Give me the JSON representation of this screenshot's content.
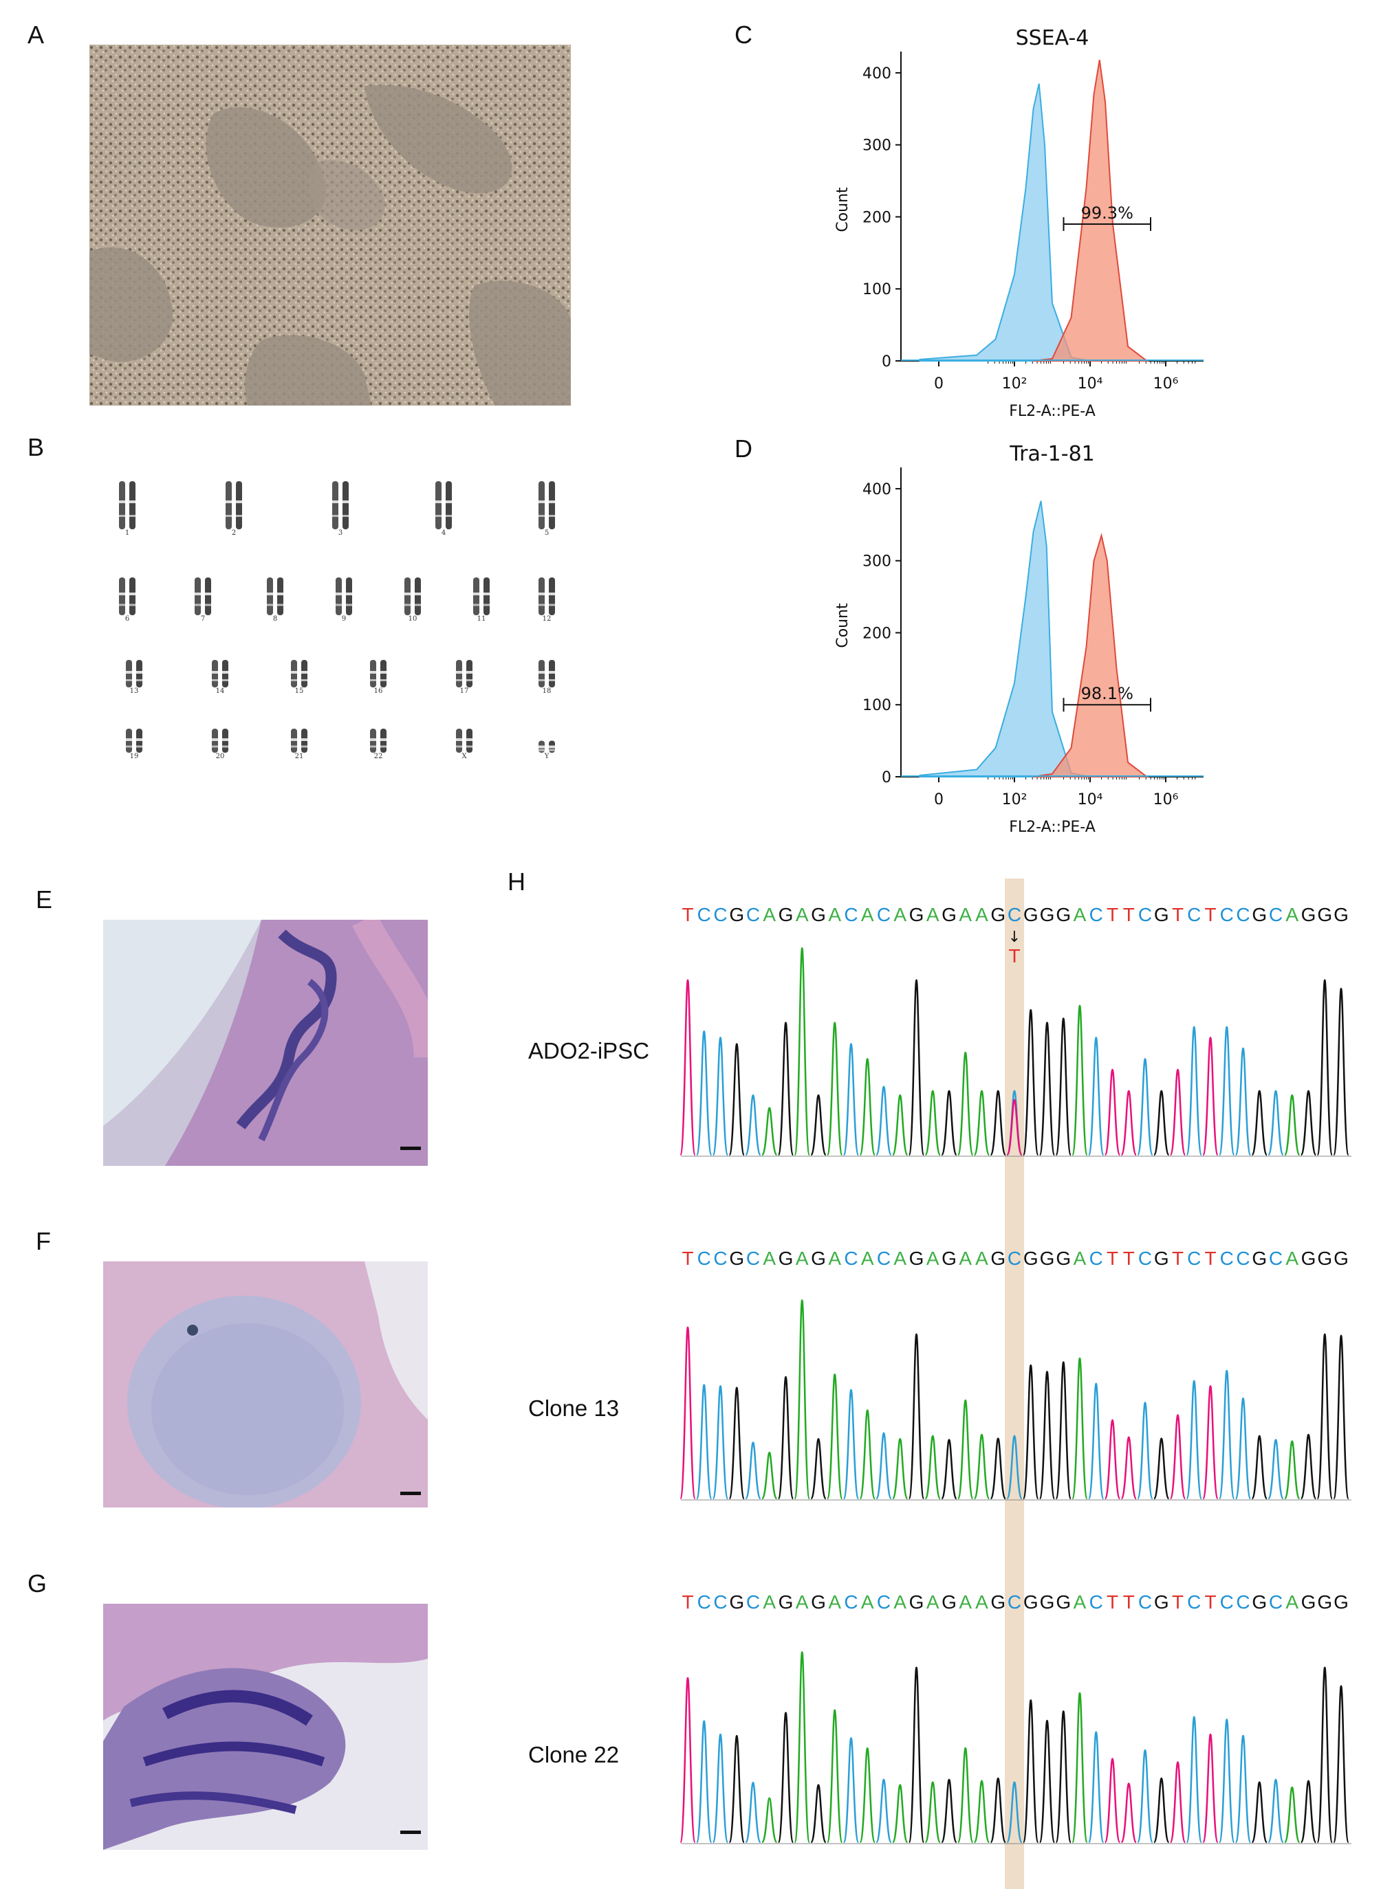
{
  "panel_labels": [
    "A",
    "B",
    "C",
    "D",
    "E",
    "F",
    "G",
    "H"
  ],
  "karyotype": {
    "labels": [
      "1",
      "2",
      "3",
      "4",
      "5",
      "6",
      "7",
      "8",
      "9",
      "10",
      "11",
      "12",
      "13",
      "14",
      "15",
      "16",
      "17",
      "18",
      "19",
      "20",
      "21",
      "22",
      "X",
      "Y"
    ]
  },
  "flow_panels": [
    {
      "title": "SSEA-4",
      "xlabel": "FL2-A::PE-A",
      "ylabel": "Count",
      "gate_label": "99.3%"
    },
    {
      "title": "Tra-1-81",
      "xlabel": "FL2-A::PE-A",
      "ylabel": "Count",
      "gate_label": "98.1%"
    }
  ],
  "chart_data": [
    {
      "type": "area",
      "title": "SSEA-4",
      "xlabel": "FL2-A::PE-A",
      "ylabel": "Count",
      "x_scale": "biexponential (log10)",
      "x_ticks": [
        "0",
        "10²",
        "10⁴",
        "10⁶"
      ],
      "y_ticks": [
        0,
        100,
        200,
        300,
        400
      ],
      "ylim": [
        0,
        420
      ],
      "series": [
        {
          "color": "#8ecdf0",
          "x": [
            -0.5,
            1.0,
            1.5,
            2.0,
            2.3,
            2.5,
            2.65,
            2.8,
            3.0,
            3.5,
            4.0
          ],
          "y": [
            2,
            8,
            30,
            120,
            240,
            350,
            385,
            300,
            80,
            5,
            0
          ]
        },
        {
          "color": "#f4937a",
          "x": [
            2.5,
            3.0,
            3.5,
            3.9,
            4.1,
            4.25,
            4.4,
            4.6,
            5.0,
            5.5
          ],
          "y": [
            0,
            3,
            60,
            240,
            370,
            418,
            360,
            190,
            20,
            0
          ]
        }
      ],
      "gate": {
        "label": "99.3%",
        "x_range": [
          3.3,
          5.6
        ],
        "y": 190
      }
    },
    {
      "type": "area",
      "title": "Tra-1-81",
      "xlabel": "FL2-A::PE-A",
      "ylabel": "Count",
      "x_scale": "biexponential (log10)",
      "x_ticks": [
        "0",
        "10²",
        "10⁴",
        "10⁶"
      ],
      "y_ticks": [
        0,
        100,
        200,
        300,
        400
      ],
      "ylim": [
        0,
        420
      ],
      "series": [
        {
          "color": "#8ecdf0",
          "x": [
            -0.5,
            1.0,
            1.5,
            2.0,
            2.3,
            2.5,
            2.7,
            2.85,
            3.0,
            3.5,
            4.0
          ],
          "y": [
            2,
            10,
            40,
            130,
            250,
            340,
            383,
            320,
            90,
            5,
            0
          ]
        },
        {
          "color": "#f4937a",
          "x": [
            2.5,
            3.0,
            3.5,
            3.9,
            4.1,
            4.3,
            4.45,
            4.7,
            5.0,
            5.5
          ],
          "y": [
            0,
            4,
            40,
            180,
            300,
            335,
            300,
            150,
            20,
            0
          ]
        }
      ],
      "gate": {
        "label": "98.1%",
        "x_range": [
          3.3,
          5.6
        ],
        "y": 100
      }
    }
  ],
  "sequence": {
    "bases": [
      "T",
      "C",
      "C",
      "G",
      "C",
      "A",
      "G",
      "A",
      "G",
      "A",
      "C",
      "A",
      "C",
      "A",
      "G",
      "A",
      "G",
      "A",
      "A",
      "G",
      "C",
      "G",
      "G",
      "G",
      "A",
      "C",
      "T",
      "T",
      "C",
      "G",
      "T",
      "C",
      "T",
      "C",
      "C",
      "G",
      "C",
      "A",
      "G",
      "G",
      "G"
    ],
    "highlight_index": 20,
    "mutation_base": "T",
    "mutation_arrow": "↓",
    "base_colors": {
      "A": "#3cb043",
      "C": "#1e90d6",
      "G": "#111111",
      "T": "#e0312b"
    },
    "trace_colors": {
      "A": "#22aa22",
      "C": "#2a9fd6",
      "G": "#111111",
      "T": "#e8107a"
    }
  },
  "chromatograms": [
    {
      "label": "ADO2-iPSC"
    },
    {
      "label": "Clone 13"
    },
    {
      "label": "Clone 22"
    }
  ]
}
